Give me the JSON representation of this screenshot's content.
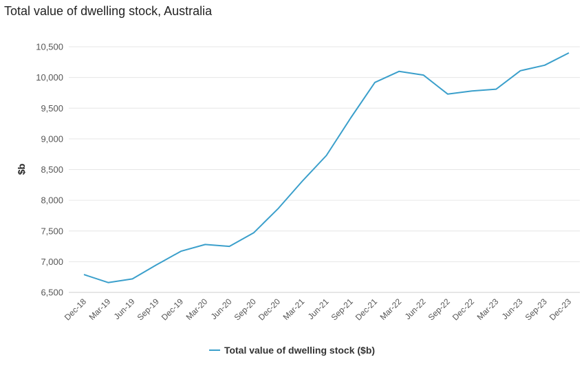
{
  "chart_data": {
    "type": "line",
    "title": "Total value of dwelling stock, Australia",
    "ylabel": "$b",
    "xlabel": "",
    "ylim": [
      6500,
      10500
    ],
    "yticks": [
      6500,
      7000,
      7500,
      8000,
      8500,
      9000,
      9500,
      10000,
      10500
    ],
    "ytick_labels": [
      "6,500",
      "7,000",
      "7,500",
      "8,000",
      "8,500",
      "9,000",
      "9,500",
      "10,000",
      "10,500"
    ],
    "categories": [
      "Dec-18",
      "Mar-19",
      "Jun-19",
      "Sep-19",
      "Dec-19",
      "Mar-20",
      "Jun-20",
      "Sep-20",
      "Dec-20",
      "Mar-21",
      "Jun-21",
      "Sep-21",
      "Dec-21",
      "Mar-22",
      "Jun-22",
      "Sep-22",
      "Dec-22",
      "Mar-23",
      "Jun-23",
      "Sep-23",
      "Dec-23"
    ],
    "series": [
      {
        "name": "Total value of dwelling stock ($b)",
        "color": "#3a9fcb",
        "values": [
          6790,
          6660,
          6720,
          6950,
          7170,
          7280,
          7250,
          7470,
          7860,
          8310,
          8730,
          9340,
          9920,
          10100,
          10040,
          9730,
          9780,
          9810,
          10110,
          10200,
          10400
        ]
      }
    ],
    "grid": "horizontal",
    "legend": "bottom-center"
  }
}
